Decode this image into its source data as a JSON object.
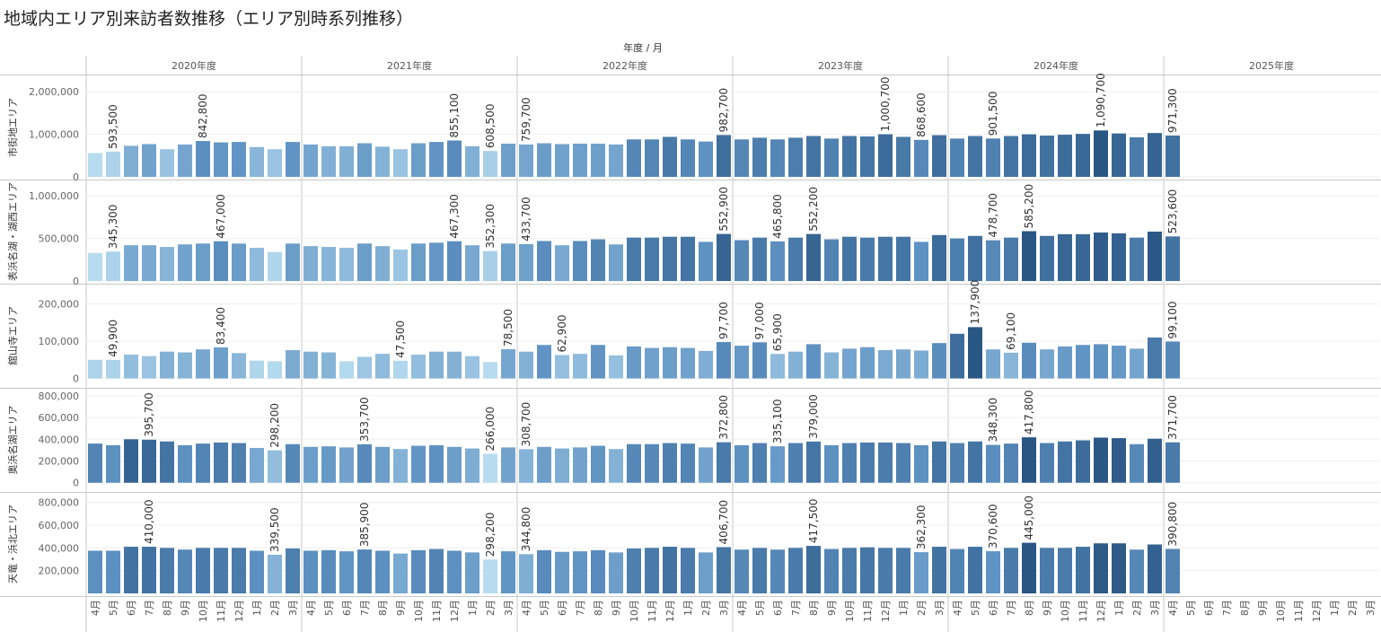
{
  "title": "地域内エリア別来訪者数推移（エリア別時系列推移）",
  "chart_data": {
    "type": "bar",
    "column_header": "年度 / 月",
    "years": [
      "2020年度",
      "2021年度",
      "2022年度",
      "2023年度",
      "2024年度",
      "2025年度"
    ],
    "months": [
      "4月",
      "5月",
      "6月",
      "7月",
      "8月",
      "9月",
      "10月",
      "11月",
      "12月",
      "1月",
      "2月",
      "3月"
    ],
    "color_scale": [
      "#b7dcf0",
      "#5f93c3",
      "#295683"
    ],
    "panels": [
      {
        "name": "市街地エリア",
        "ylim": [
          0,
          2300000
        ],
        "ticks": [
          {
            "v": 0,
            "label": "0"
          },
          {
            "v": 1000000,
            "label": "1,000,000"
          },
          {
            "v": 2000000,
            "label": "2,000,000"
          }
        ],
        "values": [
          [
            560000,
            593500,
            730000,
            770000,
            650000,
            760000,
            842800,
            810000,
            820000,
            700000,
            650000,
            820000
          ],
          [
            760000,
            720000,
            720000,
            790000,
            710000,
            650000,
            790000,
            820000,
            855100,
            720000,
            608500,
            780000
          ],
          [
            759700,
            790000,
            770000,
            780000,
            780000,
            760000,
            880000,
            880000,
            940000,
            880000,
            830000,
            982700
          ],
          [
            880000,
            920000,
            880000,
            920000,
            960000,
            900000,
            960000,
            950000,
            1000700,
            940000,
            868600,
            980000
          ],
          [
            900000,
            960000,
            901500,
            960000,
            1000000,
            970000,
            990000,
            1010000,
            1090700,
            1020000,
            930000,
            1030000
          ],
          [
            971300,
            null,
            null,
            null,
            null,
            null,
            null,
            null,
            null,
            null,
            null,
            null
          ]
        ],
        "labels": [
          [
            null,
            "593,500",
            null,
            null,
            null,
            null,
            "842,800",
            null,
            null,
            null,
            null,
            null
          ],
          [
            null,
            null,
            null,
            null,
            null,
            null,
            null,
            null,
            "855,100",
            null,
            "608,500",
            null
          ],
          [
            "759,700",
            null,
            null,
            null,
            null,
            null,
            null,
            null,
            null,
            null,
            null,
            "982,700"
          ],
          [
            null,
            null,
            null,
            null,
            null,
            null,
            null,
            null,
            "1,000,700",
            null,
            "868,600",
            null
          ],
          [
            null,
            null,
            "901,500",
            null,
            null,
            null,
            null,
            null,
            "1,090,700",
            null,
            null,
            null
          ],
          [
            "971,300",
            null,
            null,
            null,
            null,
            null,
            null,
            null,
            null,
            null,
            null,
            null
          ]
        ]
      },
      {
        "name": "表浜名湖・湖西エリア",
        "ylim": [
          0,
          1150000
        ],
        "ticks": [
          {
            "v": 0,
            "label": "0"
          },
          {
            "v": 500000,
            "label": "500,000"
          },
          {
            "v": 1000000,
            "label": "1,000,000"
          }
        ],
        "values": [
          [
            330000,
            345300,
            420000,
            420000,
            400000,
            430000,
            440000,
            467000,
            440000,
            390000,
            340000,
            440000
          ],
          [
            410000,
            400000,
            390000,
            440000,
            410000,
            370000,
            440000,
            450000,
            467300,
            420000,
            352300,
            440000
          ],
          [
            433700,
            470000,
            420000,
            470000,
            490000,
            430000,
            510000,
            510000,
            520000,
            520000,
            460000,
            552900
          ],
          [
            480000,
            510000,
            465800,
            510000,
            552200,
            490000,
            520000,
            510000,
            520000,
            520000,
            460000,
            540000
          ],
          [
            500000,
            530000,
            478700,
            510000,
            585200,
            530000,
            550000,
            550000,
            570000,
            560000,
            510000,
            580000
          ],
          [
            523600,
            null,
            null,
            null,
            null,
            null,
            null,
            null,
            null,
            null,
            null,
            null
          ]
        ],
        "labels": [
          [
            null,
            "345,300",
            null,
            null,
            null,
            null,
            null,
            "467,000",
            null,
            null,
            null,
            null
          ],
          [
            null,
            null,
            null,
            null,
            null,
            null,
            null,
            null,
            "467,300",
            null,
            "352,300",
            null
          ],
          [
            "433,700",
            null,
            null,
            null,
            null,
            null,
            null,
            null,
            null,
            null,
            null,
            "552,900"
          ],
          [
            null,
            null,
            "465,800",
            null,
            "552,200",
            null,
            null,
            null,
            null,
            null,
            null,
            null
          ],
          [
            null,
            null,
            "478,700",
            null,
            "585,200",
            null,
            null,
            null,
            null,
            null,
            null,
            null
          ],
          [
            "523,600",
            null,
            null,
            null,
            null,
            null,
            null,
            null,
            null,
            null,
            null,
            null
          ]
        ]
      },
      {
        "name": "舘山寺エリア",
        "ylim": [
          -18000,
          245000
        ],
        "ticks": [
          {
            "v": 0,
            "label": "0"
          },
          {
            "v": 100000,
            "label": "100,000"
          },
          {
            "v": 200000,
            "label": "200,000"
          }
        ],
        "values": [
          [
            50000,
            49900,
            64000,
            60000,
            72000,
            70000,
            78000,
            83400,
            68000,
            48000,
            46000,
            76000
          ],
          [
            72000,
            70000,
            46000,
            58000,
            66000,
            47500,
            64000,
            72000,
            72000,
            60000,
            44000,
            78500
          ],
          [
            72000,
            90000,
            62900,
            66000,
            90000,
            62000,
            86000,
            82000,
            84000,
            82000,
            74000,
            97700
          ],
          [
            88000,
            97000,
            65900,
            72000,
            92000,
            70000,
            80000,
            84000,
            76000,
            78000,
            75000,
            95000
          ],
          [
            120000,
            137900,
            78000,
            69100,
            96000,
            78000,
            86000,
            90000,
            92000,
            88000,
            80000,
            110000
          ],
          [
            99100,
            null,
            null,
            null,
            null,
            null,
            null,
            null,
            null,
            null,
            null,
            null
          ]
        ],
        "labels": [
          [
            null,
            "49,900",
            null,
            null,
            null,
            null,
            null,
            "83,400",
            null,
            null,
            null,
            null
          ],
          [
            null,
            null,
            null,
            null,
            null,
            "47,500",
            null,
            null,
            null,
            null,
            null,
            "78,500"
          ],
          [
            null,
            null,
            "62,900",
            null,
            null,
            null,
            null,
            null,
            null,
            null,
            null,
            "97,700"
          ],
          [
            null,
            "97,000",
            "65,900",
            null,
            null,
            null,
            null,
            null,
            null,
            null,
            null,
            null
          ],
          [
            null,
            "137,900",
            null,
            "69,100",
            null,
            null,
            null,
            null,
            null,
            null,
            null,
            null
          ],
          [
            "99,100",
            null,
            null,
            null,
            null,
            null,
            null,
            null,
            null,
            null,
            null,
            null
          ]
        ]
      },
      {
        "name": "奥浜名湖エリア",
        "ylim": [
          -60000,
          840000
        ],
        "ticks": [
          {
            "v": 0,
            "label": "0"
          },
          {
            "v": 200000,
            "label": "200,000"
          },
          {
            "v": 400000,
            "label": "400,000"
          },
          {
            "v": 600000,
            "label": "600,000"
          },
          {
            "v": 800000,
            "label": "800,000"
          }
        ],
        "values": [
          [
            360000,
            345000,
            400000,
            395700,
            380000,
            345000,
            360000,
            370000,
            365000,
            320000,
            298200,
            355000
          ],
          [
            330000,
            335000,
            325000,
            353700,
            330000,
            310000,
            340000,
            345000,
            330000,
            315000,
            266000,
            325000
          ],
          [
            308700,
            330000,
            315000,
            325000,
            340000,
            310000,
            355000,
            355000,
            365000,
            360000,
            325000,
            372800
          ],
          [
            345000,
            365000,
            335100,
            365000,
            379000,
            345000,
            365000,
            370000,
            370000,
            365000,
            345000,
            380000
          ],
          [
            365000,
            380000,
            348300,
            360000,
            417800,
            365000,
            380000,
            390000,
            415000,
            410000,
            355000,
            405000
          ],
          [
            371700,
            null,
            null,
            null,
            null,
            null,
            null,
            null,
            null,
            null,
            null,
            null
          ]
        ],
        "labels": [
          [
            null,
            null,
            null,
            "395,700",
            null,
            null,
            null,
            null,
            null,
            null,
            "298,200",
            null
          ],
          [
            null,
            null,
            null,
            "353,700",
            null,
            null,
            null,
            null,
            null,
            null,
            "266,000",
            null
          ],
          [
            "308,700",
            null,
            null,
            null,
            null,
            null,
            null,
            null,
            null,
            null,
            null,
            "372,800"
          ],
          [
            null,
            null,
            "335,100",
            null,
            "379,000",
            null,
            null,
            null,
            null,
            null,
            null,
            null
          ],
          [
            null,
            null,
            "348,300",
            null,
            "417,800",
            null,
            null,
            null,
            null,
            null,
            null,
            null
          ],
          [
            "371,700",
            null,
            null,
            null,
            null,
            null,
            null,
            null,
            null,
            null,
            null,
            null
          ]
        ]
      },
      {
        "name": "天竜・浜北エリア",
        "ylim": [
          0,
          860000
        ],
        "ticks": [
          {
            "v": 200000,
            "label": "200,000"
          },
          {
            "v": 400000,
            "label": "400,000"
          },
          {
            "v": 600000,
            "label": "600,000"
          },
          {
            "v": 800000,
            "label": "800,000"
          }
        ],
        "values": [
          [
            375000,
            375000,
            410000,
            410000,
            400000,
            385000,
            400000,
            400000,
            400000,
            375000,
            339500,
            395000
          ],
          [
            375000,
            380000,
            370000,
            385900,
            375000,
            350000,
            380000,
            390000,
            375000,
            360000,
            298200,
            370000
          ],
          [
            344800,
            380000,
            365000,
            370000,
            380000,
            360000,
            395000,
            400000,
            410000,
            400000,
            360000,
            406700
          ],
          [
            385000,
            400000,
            385000,
            400000,
            417500,
            390000,
            400000,
            405000,
            400000,
            400000,
            362300,
            410000
          ],
          [
            390000,
            410000,
            370600,
            400000,
            445000,
            400000,
            400000,
            410000,
            440000,
            440000,
            385000,
            430000
          ],
          [
            390800,
            null,
            null,
            null,
            null,
            null,
            null,
            null,
            null,
            null,
            null,
            null
          ]
        ],
        "labels": [
          [
            null,
            null,
            null,
            "410,000",
            null,
            null,
            null,
            null,
            null,
            null,
            "339,500",
            null
          ],
          [
            null,
            null,
            null,
            "385,900",
            null,
            null,
            null,
            null,
            null,
            null,
            "298,200",
            null
          ],
          [
            "344,800",
            null,
            null,
            null,
            null,
            null,
            null,
            null,
            null,
            null,
            null,
            "406,700"
          ],
          [
            null,
            null,
            null,
            null,
            "417,500",
            null,
            null,
            null,
            null,
            null,
            "362,300",
            null
          ],
          [
            null,
            null,
            "370,600",
            null,
            "445,000",
            null,
            null,
            null,
            null,
            null,
            null,
            null
          ],
          [
            "390,800",
            null,
            null,
            null,
            null,
            null,
            null,
            null,
            null,
            null,
            null,
            null
          ]
        ]
      }
    ]
  }
}
